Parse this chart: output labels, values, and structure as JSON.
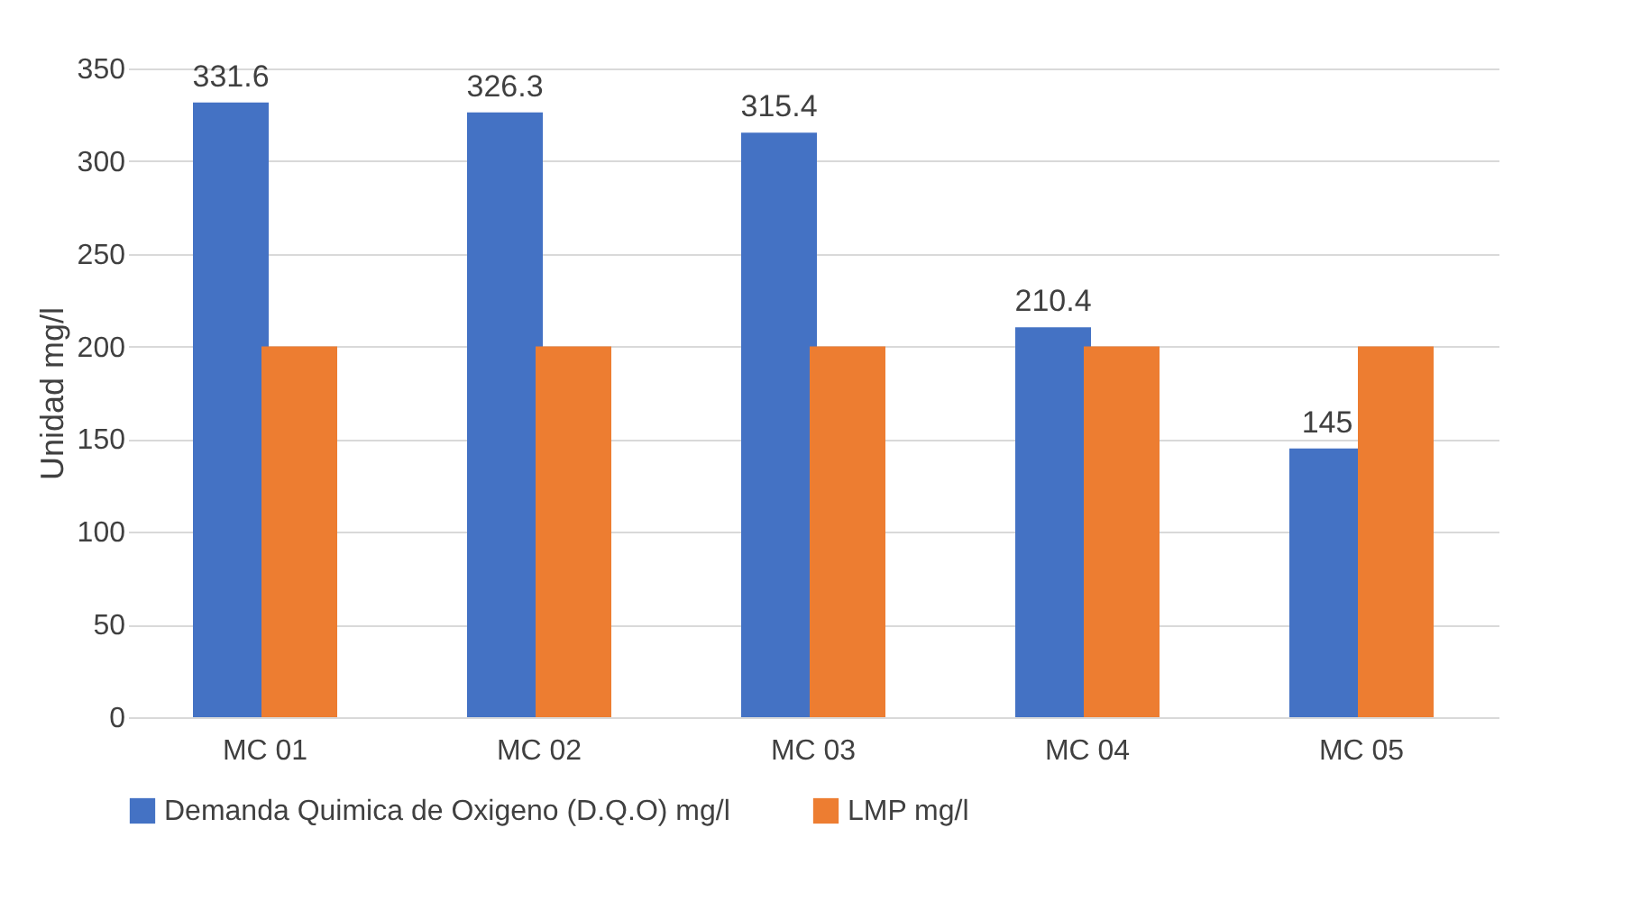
{
  "chart_data": {
    "type": "bar",
    "ylabel": "Unidad mg/l",
    "categories": [
      "MC 01",
      "MC 02",
      "MC 03",
      "MC 04",
      "MC 05"
    ],
    "series": [
      {
        "name": "Demanda Quimica de Oxigeno (D.Q.O)  mg/l",
        "color": "#4472c4",
        "values": [
          331.6,
          326.3,
          315.4,
          210.4,
          145
        ],
        "value_labels": [
          "331.6",
          "326.3",
          "315.4",
          "210.4",
          "145"
        ]
      },
      {
        "name": "LMP mg/l",
        "color": "#ed7d31",
        "values": [
          200,
          200,
          200,
          200,
          200
        ]
      }
    ],
    "ylim": [
      0,
      350
    ],
    "yticks": [
      0,
      50,
      100,
      150,
      200,
      250,
      300,
      350
    ],
    "grid": "y",
    "legend": "bottom"
  }
}
